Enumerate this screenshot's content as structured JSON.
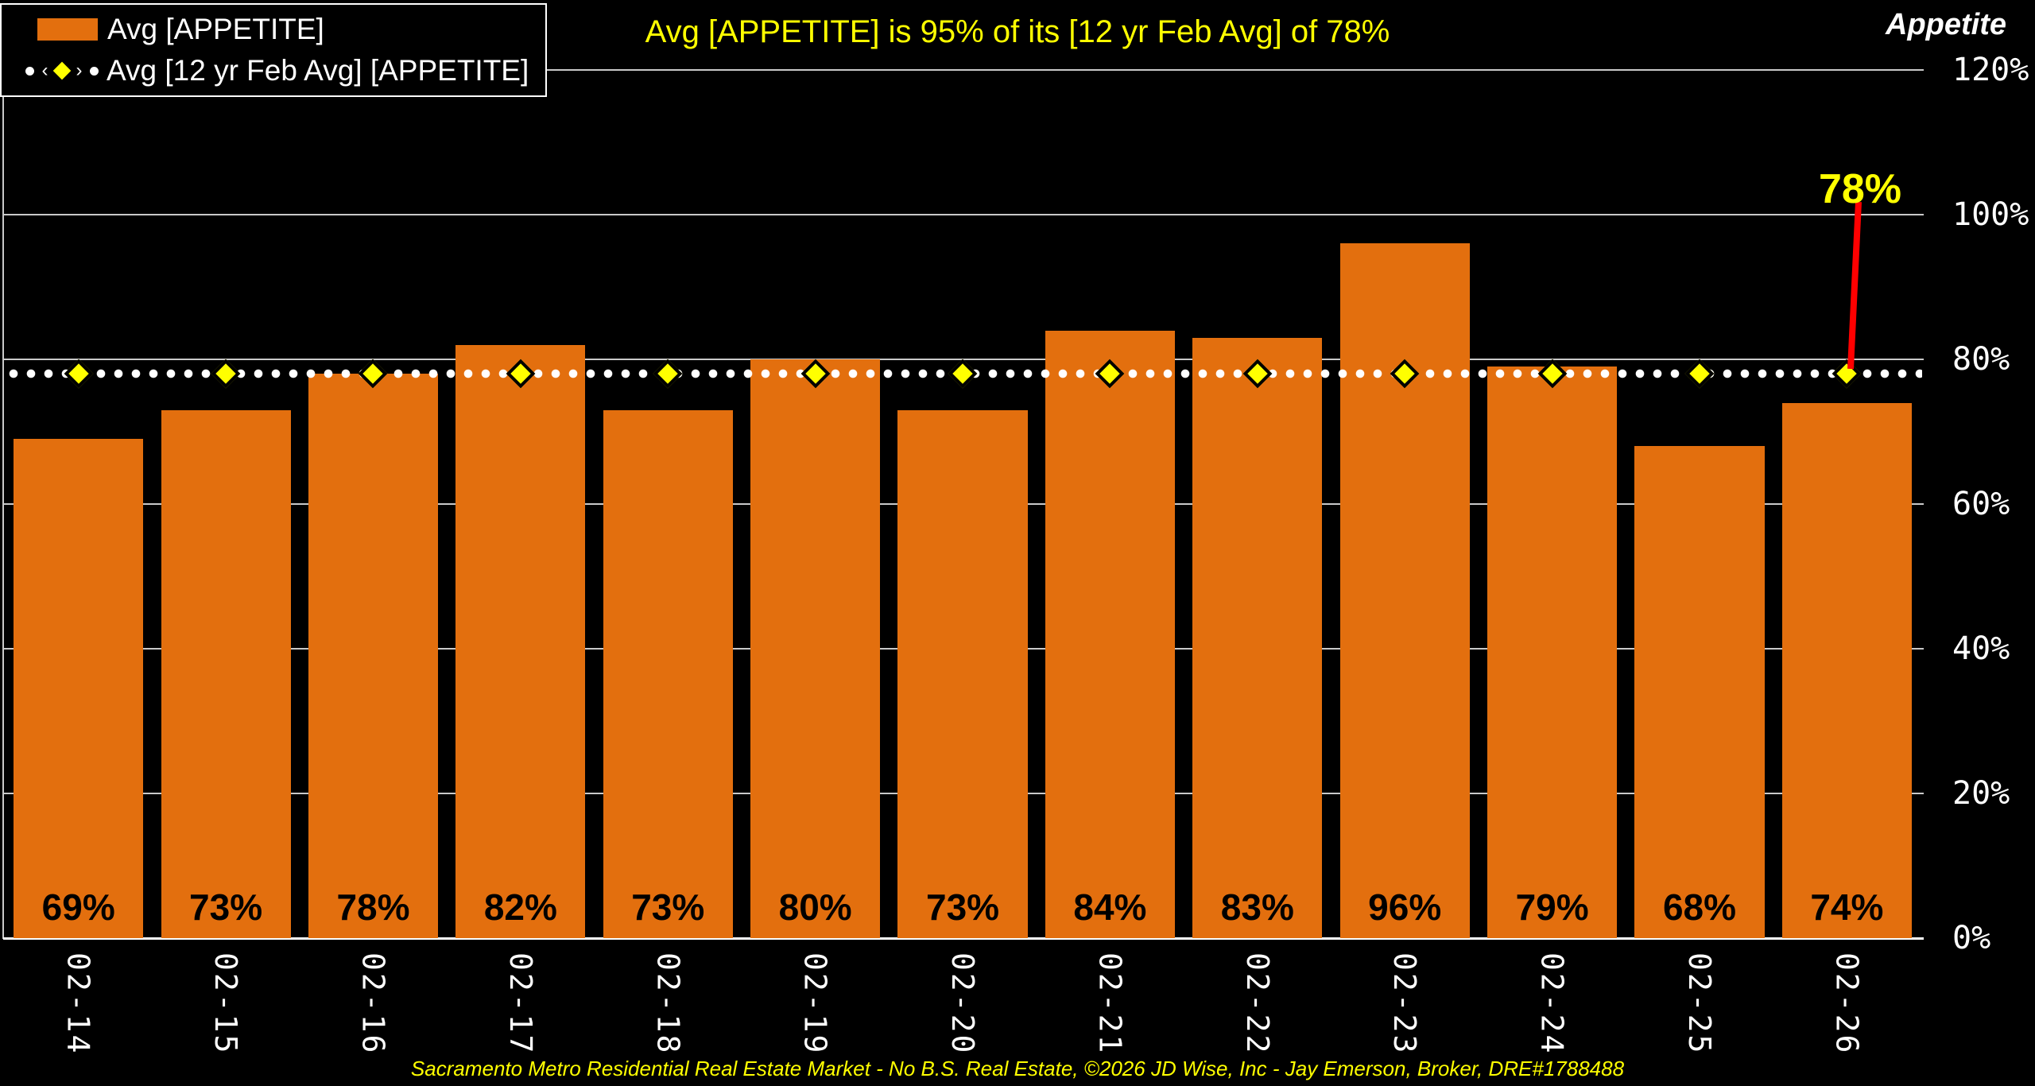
{
  "header": {
    "title": "Avg [APPETITE] is 95% of its [12 yr Feb Avg] of 78%",
    "axis_title_right": "Appetite"
  },
  "legend": {
    "series1_label": "Avg [APPETITE]",
    "series2_label": "Avg [12 yr Feb Avg] [APPETITE]"
  },
  "annotation": {
    "avg_callout_label": "78%"
  },
  "footer": {
    "credit": "Sacramento Metro Residential Real Estate Market - No B.S. Real Estate, ©2026 JD Wise, Inc - Jay Emerson, Broker, DRE#1788488"
  },
  "colors": {
    "background": "#000000",
    "bar": "#E36F0E",
    "accent_yellow": "#FFFF00",
    "annotation_line": "#FF0000",
    "gridline": "#C9C9C9",
    "text": "#FFFFFF",
    "bar_label": "#000000"
  },
  "chart_data": {
    "type": "bar",
    "title": "Avg [APPETITE] is 95% of its [12 yr Feb Avg] of 78%",
    "categories": [
      "02-14",
      "02-15",
      "02-16",
      "02-17",
      "02-18",
      "02-19",
      "02-20",
      "02-21",
      "02-22",
      "02-23",
      "02-24",
      "02-25",
      "02-26"
    ],
    "series": [
      {
        "name": "Avg [APPETITE]",
        "type": "bar",
        "values": [
          69,
          73,
          78,
          82,
          73,
          80,
          73,
          84,
          83,
          96,
          79,
          68,
          74
        ],
        "color": "#E36F0E"
      },
      {
        "name": "Avg [12 yr Feb Avg] [APPETITE]",
        "type": "line",
        "style": "dotted-with-diamond-markers",
        "constant_value": 78,
        "values": [
          78,
          78,
          78,
          78,
          78,
          78,
          78,
          78,
          78,
          78,
          78,
          78,
          78
        ],
        "color": "#FFFF00"
      }
    ],
    "value_suffix": "%",
    "xlabel": "",
    "ylabel": "Appetite",
    "ylim": [
      0,
      120
    ],
    "y_ticks": [
      "120%",
      "100%",
      "80%",
      "60%",
      "40%",
      "20%",
      "0%"
    ],
    "grid": true,
    "legend_position": "top-left",
    "annotation": {
      "text": "78%",
      "points_to_value": 78,
      "at_category": "02-26"
    }
  }
}
